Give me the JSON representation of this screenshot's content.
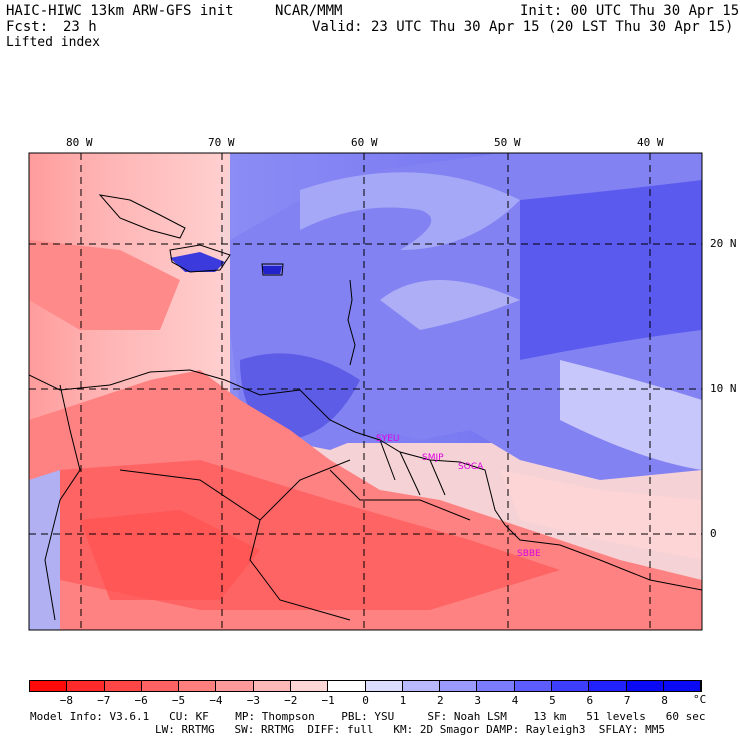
{
  "header": {
    "model": "HAIC-HIWC 13km ARW-GFS init",
    "org": "NCAR/MMM",
    "init": "Init: 00 UTC Thu 30 Apr 15",
    "fcst_label": "Fcst:",
    "fcst_value": "23 h",
    "valid": "Valid: 23 UTC Thu 30 Apr 15 (20 LST Thu 30 Apr 15)",
    "field": "Lifted index"
  },
  "map": {
    "lon_labels": [
      "80 W",
      "70 W",
      "60 W",
      "50 W",
      "40 W"
    ],
    "lat_labels": [
      "20 N",
      "10 N",
      "0"
    ],
    "stations": [
      "SYEU",
      "SMJP",
      "SOCA",
      "SBBE"
    ]
  },
  "colorbar": {
    "labels": [
      "−8",
      "−7",
      "−6",
      "−5",
      "−4",
      "−3",
      "−2",
      "−1",
      "0",
      "1",
      "2",
      "3",
      "4",
      "5",
      "6",
      "7",
      "8"
    ],
    "unit": "°C",
    "colors": [
      "#ff0a0a",
      "#ff2a2a",
      "#ff4646",
      "#ff6262",
      "#ff7e7e",
      "#ff9a9a",
      "#ffb8b8",
      "#ffd6d6",
      "#ffffff",
      "#dcdcff",
      "#b9b9ff",
      "#9a9aff",
      "#7c7cff",
      "#5c5cff",
      "#3e3eff",
      "#2222ff",
      "#0a0af5"
    ]
  },
  "footer": {
    "line1": "Model Info: V3.6.1   CU: KF    MP: Thompson    PBL: YSU     SF: Noah LSM    13 km   51 levels   60 sec",
    "line2": "LW: RRTMG   SW: RRTMG  DIFF: full   KM: 2D Smagor DAMP: Rayleigh3  SFLAY: MM5"
  }
}
